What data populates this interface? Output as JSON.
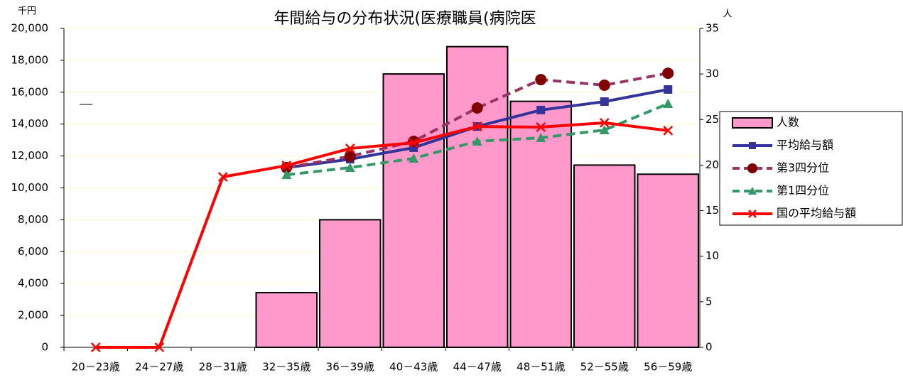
{
  "chart_data": {
    "type": "bar",
    "title": "年間給与の分布状況(医療職員(病院医",
    "y_label": "千円",
    "y2_label": "人",
    "categories": [
      "20－23歳",
      "24－27歳",
      "28－31歳",
      "32－35歳",
      "36－39歳",
      "40－43歳",
      "44－47歳",
      "48－51歳",
      "52－55歳",
      "56－59歳"
    ],
    "series": [
      {
        "name": "人数",
        "type": "bar",
        "axis": "y2",
        "color": "#ff99cc",
        "values": [
          null,
          null,
          null,
          6,
          14,
          30,
          33,
          27,
          20,
          19
        ]
      },
      {
        "name": "平均給与額",
        "type": "line",
        "marker": "square",
        "color": "#333399",
        "values": [
          null,
          null,
          null,
          11270,
          11800,
          12520,
          13850,
          14880,
          15410,
          16170
        ]
      },
      {
        "name": "第3四分位",
        "type": "line",
        "marker": "circle",
        "dash": true,
        "color": "#993366",
        "values": [
          null,
          null,
          null,
          11270,
          11980,
          12920,
          15010,
          16790,
          16440,
          17190
        ]
      },
      {
        "name": "第1四分位",
        "type": "line",
        "marker": "triangle",
        "dash": true,
        "color": "#339966",
        "values": [
          null,
          null,
          null,
          10820,
          11270,
          11850,
          12920,
          13140,
          13630,
          15280
        ]
      },
      {
        "name": "国の平均給与額",
        "type": "line",
        "marker": "x",
        "color": "#ff0000",
        "values": [
          0,
          0,
          10690,
          11400,
          12470,
          12830,
          13850,
          13810,
          14080,
          13590
        ]
      }
    ],
    "ylim": [
      0,
      20000
    ],
    "yticks": [
      0,
      {
        "value": 2000,
        "label": "2,000"
      },
      {
        "value": 4000,
        "label": "4,000"
      },
      {
        "value": 6000,
        "label": "6,000"
      },
      {
        "value": 8000,
        "label": "8,000"
      },
      {
        "value": 10000,
        "label": "10,000"
      },
      {
        "value": 12000,
        "label": "12,000"
      },
      {
        "value": 14000,
        "label": "14,000"
      },
      {
        "value": 16000,
        "label": "16,000"
      },
      {
        "value": 18000,
        "label": "18,000"
      },
      {
        "value": 20000,
        "label": "20,000"
      }
    ],
    "y2lim": [
      0,
      35
    ],
    "y2ticks": [
      0,
      5,
      10,
      15,
      20,
      25,
      30,
      35
    ],
    "grid": true,
    "legend": "right"
  }
}
